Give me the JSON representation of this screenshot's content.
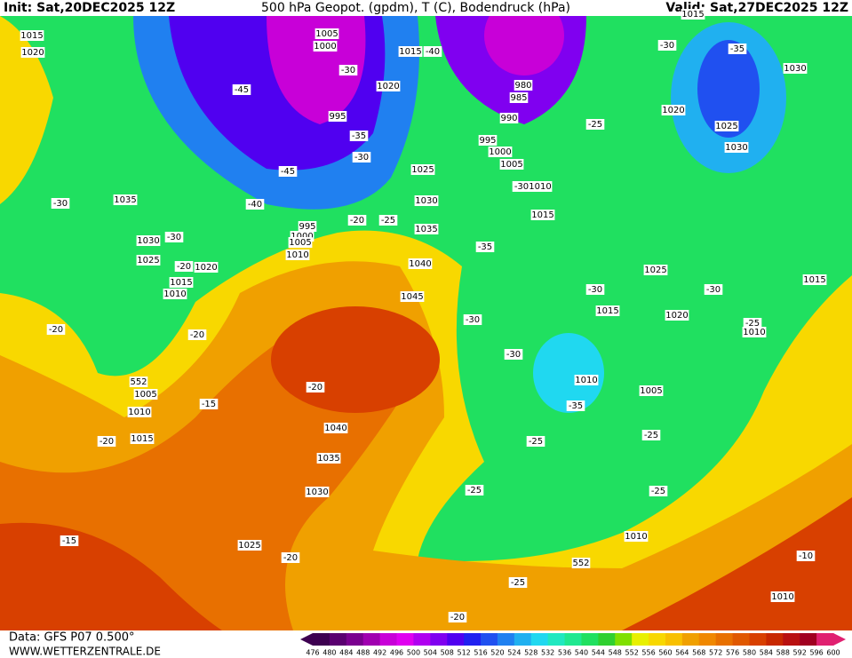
{
  "header": {
    "init": "Init: Sat,20DEC2025 12Z",
    "title": "500 hPa Geopot. (gpdm), T (C), Bodendruck (hPa)",
    "valid": "Valid: Sat,27DEC2025 12Z"
  },
  "footer": {
    "data": "Data: GFS P07 0.500°",
    "site": "WWW.WETTERZENTRALE.DE"
  },
  "colorbar": {
    "labels": [
      476,
      480,
      484,
      488,
      492,
      496,
      500,
      504,
      508,
      512,
      516,
      520,
      524,
      528,
      532,
      536,
      540,
      544,
      548,
      552,
      556,
      560,
      564,
      568,
      572,
      576,
      580,
      584,
      588,
      592,
      596,
      600
    ],
    "colors": [
      "#3d0050",
      "#5a0070",
      "#7a008f",
      "#a000b0",
      "#c800d8",
      "#e000f0",
      "#b000f0",
      "#8000f0",
      "#5000f0",
      "#2020f0",
      "#2050f0",
      "#2080f0",
      "#20b0f0",
      "#20d8f0",
      "#20e8c0",
      "#20e890",
      "#20e060",
      "#30d030",
      "#80e000",
      "#e8f000",
      "#f8d800",
      "#f8c000",
      "#f0a000",
      "#f08800",
      "#e87000",
      "#e05800",
      "#d84000",
      "#c82800",
      "#b81010",
      "#a00020",
      "#e02070"
    ]
  },
  "map_labels": [
    "1015",
    "1020",
    "1005",
    "1000",
    "1015",
    "-40",
    "-30",
    "-45",
    "1020",
    "980",
    "985",
    "995",
    "990",
    "-35",
    "-30",
    "995",
    "1000",
    "1005",
    "-45",
    "1025",
    "-30",
    "1010",
    "1035",
    "-30",
    "-40",
    "1030",
    "-20",
    "-25",
    "995",
    "1000",
    "1035",
    "1005",
    "1010",
    "1030",
    "-30",
    "1025",
    "-20",
    "1020",
    "1040",
    "-35",
    "1015",
    "1010",
    "1045",
    "-30",
    "-20",
    "-20",
    "552",
    "1005",
    "1010",
    "-15",
    "-20",
    "1040",
    "1015",
    "-20",
    "1035",
    "1030",
    "-15",
    "1025",
    "-20",
    "-20",
    "-25",
    "552",
    "1010",
    "-25",
    "-25",
    "-35",
    "1010",
    "1005",
    "-25",
    "-25",
    "1015",
    "-25",
    "-30",
    "-35",
    "1030",
    "1020",
    "1025",
    "1030",
    "1025",
    "-30",
    "1015",
    "1020",
    "-30",
    "1015",
    "-25",
    "1010",
    "-30",
    "-10",
    "1010",
    "1015"
  ]
}
